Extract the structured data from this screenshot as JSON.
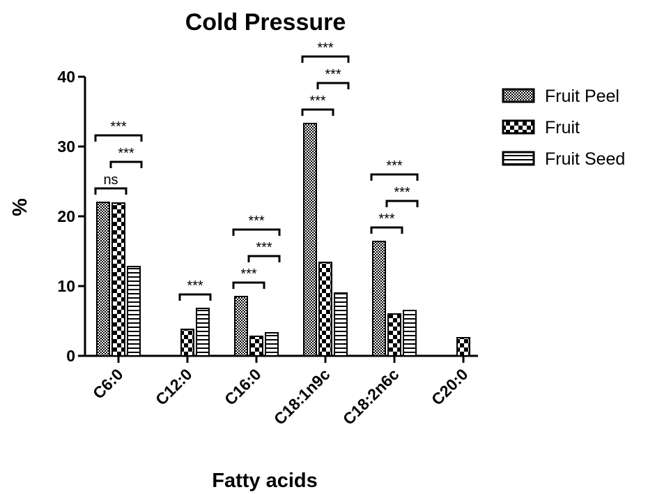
{
  "chart_data": {
    "type": "bar",
    "title": "Cold Pressure",
    "xlabel": "Fatty acids",
    "ylabel": "%",
    "ylim": [
      0,
      40
    ],
    "yticks": [
      0,
      10,
      20,
      30,
      40
    ],
    "categories": [
      "C6:0",
      "C12:0",
      "C16:0",
      "C18:1n9c",
      "C18:2n6c",
      "C20:0"
    ],
    "series": [
      {
        "name": "Fruit Peel",
        "pattern": "fine-checker",
        "values": [
          22.0,
          null,
          8.5,
          33.3,
          16.4,
          null
        ]
      },
      {
        "name": "Fruit",
        "pattern": "coarse-checker",
        "values": [
          21.9,
          3.8,
          2.8,
          13.4,
          6.0,
          2.6
        ]
      },
      {
        "name": "Fruit Seed",
        "pattern": "horizontal-stripes",
        "values": [
          12.8,
          6.8,
          3.3,
          9.0,
          6.5,
          null
        ]
      }
    ],
    "legend_position": "right",
    "annotations": [
      {
        "category": "C6:0",
        "from": "Fruit Peel",
        "to": "Fruit",
        "label": "ns"
      },
      {
        "category": "C6:0",
        "from": "Fruit",
        "to": "Fruit Seed",
        "label": "***"
      },
      {
        "category": "C6:0",
        "from": "Fruit Peel",
        "to": "Fruit Seed",
        "label": "***"
      },
      {
        "category": "C12:0",
        "from": "Fruit",
        "to": "Fruit Seed",
        "label": "***"
      },
      {
        "category": "C16:0",
        "from": "Fruit Peel",
        "to": "Fruit",
        "label": "***"
      },
      {
        "category": "C16:0",
        "from": "Fruit",
        "to": "Fruit Seed",
        "label": "***"
      },
      {
        "category": "C16:0",
        "from": "Fruit Peel",
        "to": "Fruit Seed",
        "label": "***"
      },
      {
        "category": "C18:1n9c",
        "from": "Fruit Peel",
        "to": "Fruit",
        "label": "***"
      },
      {
        "category": "C18:1n9c",
        "from": "Fruit",
        "to": "Fruit Seed",
        "label": "***"
      },
      {
        "category": "C18:1n9c",
        "from": "Fruit Peel",
        "to": "Fruit Seed",
        "label": "***"
      },
      {
        "category": "C18:2n6c",
        "from": "Fruit Peel",
        "to": "Fruit",
        "label": "***"
      },
      {
        "category": "C18:2n6c",
        "from": "Fruit",
        "to": "Fruit Seed",
        "label": "***"
      },
      {
        "category": "C18:2n6c",
        "from": "Fruit Peel",
        "to": "Fruit Seed",
        "label": "***"
      }
    ],
    "grid": false
  }
}
